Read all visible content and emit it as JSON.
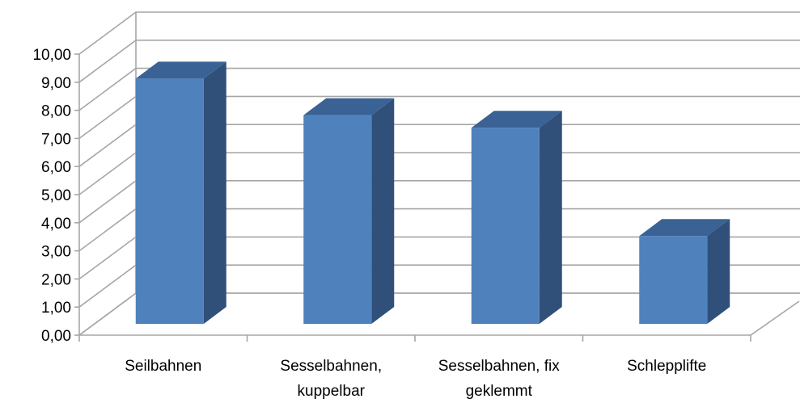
{
  "chart_data": {
    "type": "bar",
    "style": "3d-column",
    "categories": [
      [
        "Seilbahnen"
      ],
      [
        "Sesselbahnen,",
        "kuppelbar"
      ],
      [
        "Sesselbahnen, fix",
        "geklemmt"
      ],
      [
        "Schlepplifte"
      ]
    ],
    "values": [
      9.3,
      8.0,
      7.55,
      3.7
    ],
    "ylim": [
      0,
      10
    ],
    "ytick_step": 1,
    "ytick_labels": [
      "0,00",
      "1,00",
      "2,00",
      "3,00",
      "4,00",
      "5,00",
      "6,00",
      "7,00",
      "8,00",
      "9,00",
      "10,00"
    ],
    "grid": true,
    "legend": "none",
    "colors": {
      "bar_front": "#4F81BD",
      "bar_side": "#30507A",
      "bar_top": "#3B6294",
      "grid": "#A6A6A6",
      "text": "#000000"
    }
  }
}
